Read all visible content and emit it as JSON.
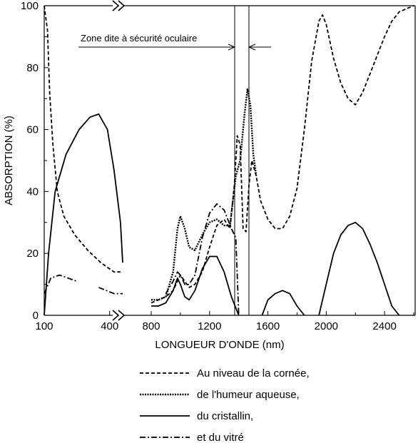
{
  "chart_data": {
    "type": "line",
    "xlabel": "LONGUEUR D'ONDE (nm)",
    "ylabel": "ABSORPTION (%)",
    "ylim": [
      0,
      100
    ],
    "y_ticks": [
      0,
      20,
      40,
      60,
      80,
      100
    ],
    "x_segments": [
      {
        "name": "uv",
        "range": [
          100,
          460
        ],
        "ticks": [
          100,
          400
        ]
      },
      {
        "name": "ir",
        "range": [
          640,
          2600
        ],
        "ticks": [
          800,
          1200,
          1600,
          2000,
          2400
        ]
      }
    ],
    "axis_break_mark": "»",
    "grid": false,
    "annotation": {
      "text": "Zone dite à sécurité oculaire",
      "band": [
        1400,
        1500
      ]
    },
    "legend_position": "bottom",
    "series": [
      {
        "name": "Au niveau de la cornée,",
        "style": "dashed",
        "points": [
          [
            100,
            100
          ],
          [
            115,
            92
          ],
          [
            125,
            72
          ],
          [
            140,
            55
          ],
          [
            160,
            40
          ],
          [
            190,
            32
          ],
          [
            240,
            26
          ],
          [
            300,
            21
          ],
          [
            360,
            17
          ],
          [
            420,
            14
          ],
          [
            450,
            14
          ],
          [
            700,
            4
          ],
          [
            800,
            4
          ],
          [
            850,
            5
          ],
          [
            900,
            6
          ],
          [
            950,
            8
          ],
          [
            980,
            11
          ],
          [
            1000,
            13
          ],
          [
            1030,
            11
          ],
          [
            1060,
            9
          ],
          [
            1100,
            10
          ],
          [
            1150,
            14
          ],
          [
            1200,
            22
          ],
          [
            1250,
            29
          ],
          [
            1300,
            31
          ],
          [
            1340,
            28
          ],
          [
            1370,
            42
          ],
          [
            1390,
            58
          ],
          [
            1410,
            55
          ],
          [
            1430,
            28
          ],
          [
            1450,
            27
          ],
          [
            1470,
            42
          ],
          [
            1490,
            50
          ],
          [
            1520,
            45
          ],
          [
            1550,
            37
          ],
          [
            1600,
            31
          ],
          [
            1650,
            28
          ],
          [
            1700,
            28
          ],
          [
            1750,
            32
          ],
          [
            1800,
            41
          ],
          [
            1850,
            60
          ],
          [
            1900,
            82
          ],
          [
            1950,
            95
          ],
          [
            1975,
            97
          ],
          [
            2000,
            94
          ],
          [
            2050,
            83
          ],
          [
            2100,
            75
          ],
          [
            2150,
            70
          ],
          [
            2200,
            68
          ],
          [
            2250,
            72
          ],
          [
            2300,
            78
          ],
          [
            2350,
            84
          ],
          [
            2400,
            90
          ],
          [
            2450,
            95
          ],
          [
            2500,
            98
          ],
          [
            2550,
            99
          ],
          [
            2600,
            100
          ]
        ]
      },
      {
        "name": "de l'humeur aqueuse,",
        "style": "dotted",
        "points": [
          [
            700,
            5
          ],
          [
            800,
            5
          ],
          [
            850,
            5
          ],
          [
            900,
            6
          ],
          [
            950,
            14
          ],
          [
            980,
            28
          ],
          [
            1000,
            32
          ],
          [
            1030,
            28
          ],
          [
            1060,
            22
          ],
          [
            1100,
            21
          ],
          [
            1150,
            26
          ],
          [
            1200,
            30
          ],
          [
            1250,
            31
          ],
          [
            1300,
            29
          ],
          [
            1340,
            29
          ],
          [
            1380,
            45
          ],
          [
            1410,
            50
          ],
          [
            1440,
            65
          ],
          [
            1460,
            73
          ],
          [
            1480,
            68
          ],
          [
            1500,
            52
          ],
          [
            1520,
            45
          ]
        ]
      },
      {
        "name": "du cristallin,",
        "style": "solid",
        "points": [
          [
            100,
            0
          ],
          [
            120,
            20
          ],
          [
            150,
            40
          ],
          [
            200,
            52
          ],
          [
            260,
            60
          ],
          [
            310,
            64
          ],
          [
            350,
            65
          ],
          [
            390,
            60
          ],
          [
            420,
            47
          ],
          [
            450,
            30
          ],
          [
            460,
            17
          ],
          [
            700,
            3
          ],
          [
            800,
            3
          ],
          [
            850,
            3
          ],
          [
            900,
            4
          ],
          [
            950,
            8
          ],
          [
            980,
            12
          ],
          [
            1000,
            10
          ],
          [
            1030,
            6
          ],
          [
            1060,
            5
          ],
          [
            1100,
            8
          ],
          [
            1150,
            15
          ],
          [
            1200,
            19
          ],
          [
            1250,
            19
          ],
          [
            1300,
            14
          ],
          [
            1350,
            6
          ],
          [
            1400,
            0
          ],
          [
            1560,
            0
          ],
          [
            1600,
            5
          ],
          [
            1650,
            7
          ],
          [
            1700,
            8
          ],
          [
            1750,
            7
          ],
          [
            1800,
            3
          ],
          [
            1850,
            0
          ],
          [
            1950,
            0
          ],
          [
            2000,
            10
          ],
          [
            2050,
            20
          ],
          [
            2100,
            26
          ],
          [
            2150,
            29
          ],
          [
            2200,
            30
          ],
          [
            2250,
            28
          ],
          [
            2300,
            23
          ],
          [
            2350,
            17
          ],
          [
            2400,
            10
          ],
          [
            2450,
            3
          ],
          [
            2500,
            0
          ],
          [
            2600,
            0
          ]
        ]
      },
      {
        "name": "et du vitré",
        "style": "dashdot",
        "points": [
          [
            100,
            7
          ],
          [
            130,
            12
          ],
          [
            170,
            13
          ],
          [
            250,
            11
          ],
          [
            350,
            9
          ],
          [
            420,
            7
          ],
          [
            460,
            7
          ],
          [
            700,
            3
          ],
          [
            800,
            4
          ],
          [
            900,
            7
          ],
          [
            950,
            11
          ],
          [
            980,
            14
          ],
          [
            1000,
            13
          ],
          [
            1030,
            10
          ],
          [
            1060,
            10
          ],
          [
            1100,
            13
          ],
          [
            1150,
            25
          ],
          [
            1200,
            33
          ],
          [
            1250,
            36
          ],
          [
            1300,
            34
          ],
          [
            1350,
            28
          ],
          [
            1380,
            25
          ],
          [
            1400,
            0
          ]
        ]
      }
    ]
  },
  "legend": {
    "items": [
      {
        "label": "Au niveau de la cornée,",
        "style": "dashed"
      },
      {
        "label": "de l'humeur aqueuse,",
        "style": "dotted"
      },
      {
        "label": "du cristallin,",
        "style": "solid"
      },
      {
        "label": "et du vitré",
        "style": "dashdot"
      }
    ]
  }
}
